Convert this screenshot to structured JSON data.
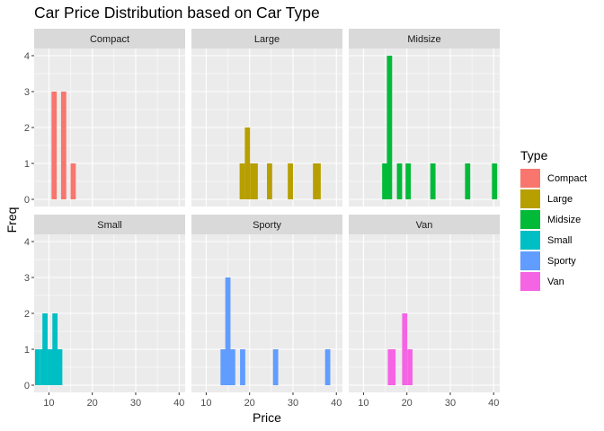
{
  "chart_data": {
    "type": "bar",
    "title": "Car Price Distribution based on Car Type",
    "xlabel": "Price",
    "ylabel": "Freq",
    "xlim": [
      6.6,
      41.4
    ],
    "ylim": [
      -0.2,
      4.2
    ],
    "x_ticks": [
      10,
      20,
      30,
      40
    ],
    "y_ticks": [
      0,
      1,
      2,
      3,
      4
    ],
    "bin_width": 1.2,
    "grid": true,
    "legend": {
      "title": "Type",
      "position": "right",
      "entries": [
        "Compact",
        "Large",
        "Midsize",
        "Small",
        "Sporty",
        "Van"
      ]
    },
    "colors": {
      "Compact": "#F8766D",
      "Large": "#B79F00",
      "Midsize": "#00BA38",
      "Small": "#00BFC4",
      "Sporty": "#619CFF",
      "Van": "#F564E3"
    },
    "facets": [
      {
        "name": "Compact",
        "bars": [
          {
            "x": 11.2,
            "y": 3
          },
          {
            "x": 13.4,
            "y": 3
          },
          {
            "x": 15.6,
            "y": 1
          }
        ]
      },
      {
        "name": "Large",
        "bars": [
          {
            "x": 18.3,
            "y": 1
          },
          {
            "x": 19.5,
            "y": 2
          },
          {
            "x": 20.7,
            "y": 1
          },
          {
            "x": 21.3,
            "y": 1
          },
          {
            "x": 24.6,
            "y": 1
          },
          {
            "x": 29.4,
            "y": 1
          },
          {
            "x": 35.2,
            "y": 1
          },
          {
            "x": 35.8,
            "y": 1
          }
        ]
      },
      {
        "name": "Midsize",
        "bars": [
          {
            "x": 14.9,
            "y": 1
          },
          {
            "x": 16.0,
            "y": 4
          },
          {
            "x": 18.3,
            "y": 1
          },
          {
            "x": 20.3,
            "y": 1
          },
          {
            "x": 26.0,
            "y": 1
          },
          {
            "x": 34.0,
            "y": 1
          },
          {
            "x": 40.2,
            "y": 1
          }
        ]
      },
      {
        "name": "Small",
        "bars": [
          {
            "x": 7.4,
            "y": 1
          },
          {
            "x": 8.6,
            "y": 1
          },
          {
            "x": 9.1,
            "y": 2
          },
          {
            "x": 10.3,
            "y": 1
          },
          {
            "x": 11.4,
            "y": 2
          },
          {
            "x": 12.5,
            "y": 1
          }
        ]
      },
      {
        "name": "Sporty",
        "bars": [
          {
            "x": 13.9,
            "y": 1
          },
          {
            "x": 15.0,
            "y": 3
          },
          {
            "x": 16.1,
            "y": 1
          },
          {
            "x": 18.4,
            "y": 1
          },
          {
            "x": 26.0,
            "y": 1
          },
          {
            "x": 38.0,
            "y": 1
          }
        ]
      },
      {
        "name": "Van",
        "bars": [
          {
            "x": 16.2,
            "y": 1
          },
          {
            "x": 16.8,
            "y": 1
          },
          {
            "x": 19.5,
            "y": 2
          },
          {
            "x": 20.7,
            "y": 1
          }
        ]
      }
    ]
  }
}
